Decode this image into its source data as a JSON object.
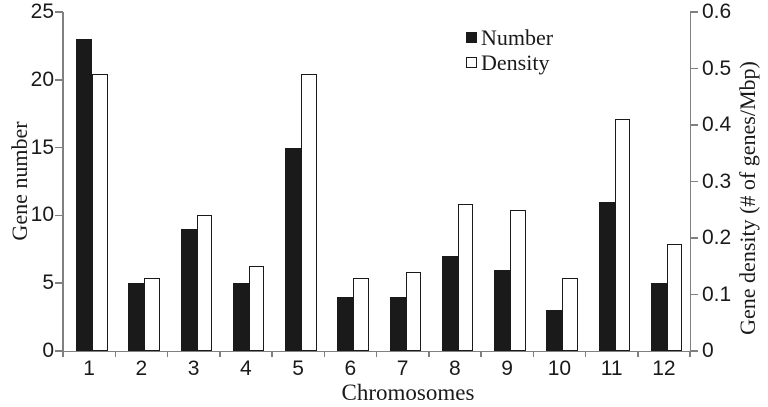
{
  "figure": {
    "background": "#ffffff"
  },
  "axes": {
    "y_left": {
      "title": "Gene number",
      "tick_labels": [
        "25",
        "20",
        "15",
        "10",
        "5",
        "0"
      ],
      "min": 0,
      "max": 25,
      "step": 5
    },
    "y_right": {
      "title": "Gene density (# of genes/Mbp)",
      "tick_labels": [
        "0.6",
        "0.5",
        "0.4",
        "0.3",
        "0.2",
        "0.1",
        "0"
      ],
      "min": 0,
      "max": 0.6,
      "step": 0.1
    },
    "x": {
      "title": "Chromosomes",
      "tick_labels": [
        "1",
        "2",
        "3",
        "4",
        "5",
        "6",
        "7",
        "8",
        "9",
        "10",
        "11",
        "12"
      ]
    }
  },
  "legend": {
    "position": "top-right-inside",
    "items": [
      {
        "label": "Number",
        "swatch": "filled-black-square",
        "color": "#1a1a1a"
      },
      {
        "label": "Density",
        "swatch": "outlined-white-square",
        "color": "#ffffff"
      }
    ]
  },
  "chart_data": {
    "type": "bar",
    "subtype": "grouped-dual-axis",
    "title": "",
    "xlabel": "Chromosomes",
    "categories": [
      "1",
      "2",
      "3",
      "4",
      "5",
      "6",
      "7",
      "8",
      "9",
      "10",
      "11",
      "12"
    ],
    "series": [
      {
        "name": "Number",
        "axis": "left",
        "style": "filled",
        "fill": "#1a1a1a",
        "values": [
          23,
          5,
          9,
          5,
          15,
          4,
          4,
          7,
          6,
          3,
          11,
          5
        ]
      },
      {
        "name": "Density",
        "axis": "right",
        "style": "outlined",
        "fill": "#ffffff",
        "values": [
          0.49,
          0.13,
          0.24,
          0.15,
          0.49,
          0.13,
          0.14,
          0.26,
          0.25,
          0.13,
          0.41,
          0.19
        ]
      }
    ],
    "ylabel_left": "Gene number",
    "ylim_left": [
      0,
      25
    ],
    "ylabel_right": "Gene density (# of genes/Mbp)",
    "ylim_right": [
      0,
      0.6
    ],
    "grid": false,
    "colors": {
      "bar_fill": "#1a1a1a",
      "bar_outline": "#1a1a1a",
      "axis": "#808080",
      "text": "#1a1a1a"
    }
  }
}
